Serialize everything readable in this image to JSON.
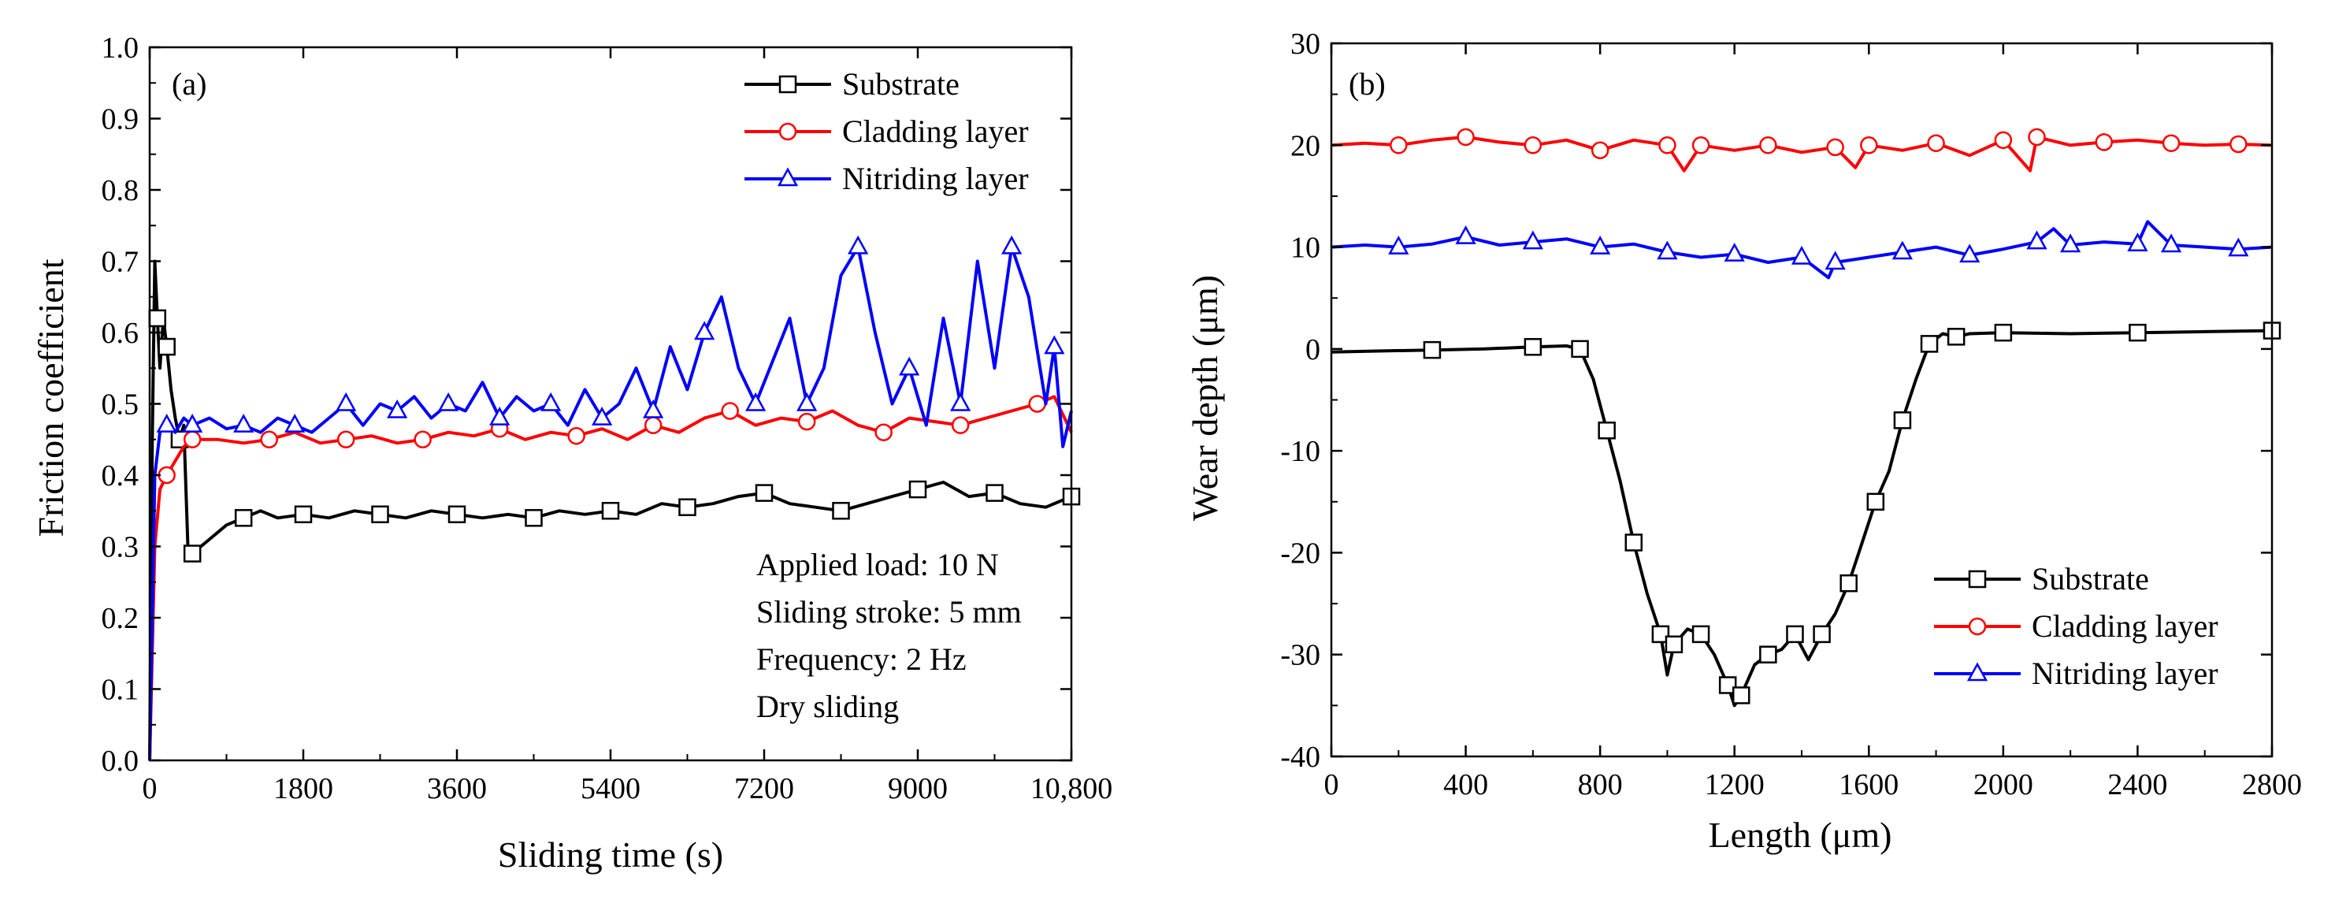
{
  "chart_data": [
    {
      "type": "line",
      "panel_label": "(a)",
      "xlabel": "Sliding time (s)",
      "ylabel": "Friction coefficient",
      "xlim": [
        0,
        10800
      ],
      "ylim": [
        0,
        1.0
      ],
      "xticks": [
        0,
        1800,
        3600,
        5400,
        7200,
        9000,
        10800
      ],
      "xtick_labels": [
        "0",
        "1800",
        "3600",
        "5400",
        "7200",
        "9000",
        "10,800"
      ],
      "yticks": [
        0,
        0.1,
        0.2,
        0.3,
        0.4,
        0.5,
        0.6,
        0.7,
        0.8,
        0.9,
        1.0
      ],
      "ytick_labels": [
        "0.0",
        "0.1",
        "0.2",
        "0.3",
        "0.4",
        "0.5",
        "0.6",
        "0.7",
        "0.8",
        "0.9",
        "1.0"
      ],
      "legend_position": "top-right",
      "annotations": [
        "Applied load: 10 N",
        "Sliding stroke: 5 mm",
        "Frequency: 2 Hz",
        "Dry sliding"
      ],
      "series": [
        {
          "name": "Substrate",
          "color": "#000000",
          "marker": "square",
          "x": [
            0,
            30,
            60,
            90,
            120,
            160,
            200,
            250,
            300,
            350,
            400,
            450,
            500,
            700,
            900,
            1100,
            1300,
            1500,
            1800,
            2100,
            2400,
            2700,
            3000,
            3300,
            3600,
            3900,
            4200,
            4500,
            4800,
            5100,
            5400,
            5700,
            6000,
            6300,
            6600,
            6900,
            7200,
            7500,
            7800,
            8100,
            8400,
            8700,
            9000,
            9300,
            9600,
            9900,
            10200,
            10500,
            10800
          ],
          "y": [
            0.0,
            0.45,
            0.7,
            0.62,
            0.55,
            0.62,
            0.58,
            0.52,
            0.48,
            0.45,
            0.47,
            0.29,
            0.29,
            0.31,
            0.33,
            0.34,
            0.35,
            0.34,
            0.345,
            0.34,
            0.35,
            0.345,
            0.34,
            0.35,
            0.345,
            0.34,
            0.345,
            0.34,
            0.35,
            0.345,
            0.35,
            0.345,
            0.36,
            0.355,
            0.36,
            0.37,
            0.375,
            0.36,
            0.355,
            0.35,
            0.36,
            0.37,
            0.38,
            0.39,
            0.37,
            0.375,
            0.36,
            0.355,
            0.37
          ]
        },
        {
          "name": "Cladding layer",
          "color": "#ff0000",
          "marker": "circle",
          "x": [
            0,
            60,
            120,
            200,
            300,
            400,
            500,
            800,
            1100,
            1400,
            1700,
            2000,
            2300,
            2600,
            2900,
            3200,
            3500,
            3800,
            4100,
            4400,
            4700,
            5000,
            5300,
            5600,
            5900,
            6200,
            6500,
            6800,
            7100,
            7400,
            7700,
            8000,
            8300,
            8600,
            8900,
            9200,
            9500,
            9800,
            10100,
            10400,
            10600,
            10800
          ],
          "y": [
            0.0,
            0.3,
            0.38,
            0.4,
            0.42,
            0.44,
            0.45,
            0.45,
            0.445,
            0.45,
            0.46,
            0.445,
            0.45,
            0.455,
            0.445,
            0.45,
            0.46,
            0.455,
            0.465,
            0.45,
            0.46,
            0.455,
            0.465,
            0.45,
            0.47,
            0.46,
            0.48,
            0.49,
            0.47,
            0.48,
            0.475,
            0.49,
            0.47,
            0.46,
            0.48,
            0.475,
            0.47,
            0.48,
            0.49,
            0.5,
            0.51,
            0.46
          ]
        },
        {
          "name": "Nitriding layer",
          "color": "#0000ff",
          "marker": "triangle",
          "x": [
            0,
            60,
            120,
            200,
            300,
            400,
            500,
            700,
            900,
            1100,
            1300,
            1500,
            1700,
            1900,
            2100,
            2300,
            2500,
            2700,
            2900,
            3100,
            3300,
            3500,
            3700,
            3900,
            4100,
            4300,
            4500,
            4700,
            4900,
            5100,
            5300,
            5500,
            5700,
            5900,
            6100,
            6300,
            6500,
            6700,
            6900,
            7100,
            7300,
            7500,
            7700,
            7900,
            8100,
            8300,
            8500,
            8700,
            8900,
            9100,
            9300,
            9500,
            9700,
            9900,
            10100,
            10300,
            10500,
            10600,
            10700,
            10800
          ],
          "y": [
            0.0,
            0.4,
            0.46,
            0.47,
            0.46,
            0.48,
            0.47,
            0.48,
            0.465,
            0.47,
            0.46,
            0.48,
            0.47,
            0.46,
            0.48,
            0.5,
            0.47,
            0.5,
            0.49,
            0.51,
            0.48,
            0.5,
            0.49,
            0.53,
            0.48,
            0.51,
            0.49,
            0.5,
            0.47,
            0.52,
            0.48,
            0.5,
            0.55,
            0.49,
            0.58,
            0.52,
            0.6,
            0.65,
            0.55,
            0.5,
            0.56,
            0.62,
            0.5,
            0.55,
            0.68,
            0.72,
            0.6,
            0.5,
            0.55,
            0.47,
            0.62,
            0.5,
            0.7,
            0.55,
            0.72,
            0.65,
            0.5,
            0.58,
            0.44,
            0.49
          ]
        }
      ]
    },
    {
      "type": "line",
      "panel_label": "(b)",
      "xlabel": "Length (μm)",
      "ylabel": "Wear depth (μm)",
      "xlim": [
        0,
        2800
      ],
      "ylim": [
        -40,
        30
      ],
      "xticks": [
        0,
        400,
        800,
        1200,
        1600,
        2000,
        2400,
        2800
      ],
      "xtick_labels": [
        "0",
        "400",
        "800",
        "1200",
        "1600",
        "2000",
        "2400",
        "2800"
      ],
      "yticks": [
        -40,
        -30,
        -20,
        -10,
        0,
        10,
        20,
        30
      ],
      "ytick_labels": [
        "-40",
        "-30",
        "-20",
        "-10",
        "0",
        "10",
        "20",
        "30"
      ],
      "legend_position": "bottom-right",
      "series": [
        {
          "name": "Substrate",
          "color": "#000000",
          "marker": "square",
          "x": [
            0,
            150,
            300,
            450,
            600,
            700,
            740,
            780,
            820,
            860,
            900,
            940,
            980,
            1000,
            1020,
            1060,
            1100,
            1140,
            1180,
            1200,
            1220,
            1260,
            1300,
            1340,
            1380,
            1420,
            1460,
            1500,
            1540,
            1580,
            1620,
            1660,
            1700,
            1740,
            1780,
            1820,
            1860,
            1900,
            2000,
            2200,
            2400,
            2600,
            2800
          ],
          "y": [
            -0.3,
            -0.2,
            -0.1,
            0.0,
            0.2,
            0.3,
            0.0,
            -3,
            -8,
            -13,
            -19,
            -24,
            -28,
            -32,
            -29,
            -27.5,
            -28,
            -30,
            -33,
            -35,
            -34,
            -31,
            -30,
            -29.5,
            -28,
            -30.5,
            -28,
            -26,
            -23,
            -19,
            -15,
            -12,
            -7,
            -3,
            0.5,
            1.5,
            1.2,
            1.5,
            1.6,
            1.5,
            1.6,
            1.7,
            1.8
          ]
        },
        {
          "name": "Cladding layer",
          "color": "#ff0000",
          "marker": "circle",
          "x": [
            0,
            100,
            200,
            300,
            400,
            500,
            600,
            700,
            800,
            900,
            1000,
            1050,
            1100,
            1200,
            1300,
            1400,
            1500,
            1560,
            1600,
            1700,
            1800,
            1900,
            2000,
            2080,
            2100,
            2200,
            2300,
            2400,
            2500,
            2600,
            2700,
            2800
          ],
          "y": [
            20,
            20.2,
            20,
            20.5,
            20.8,
            20.3,
            20,
            20.5,
            19.5,
            20.5,
            20,
            17.5,
            20,
            19.5,
            20,
            19.3,
            19.8,
            17.8,
            20,
            19.5,
            20.2,
            19,
            20.5,
            17.5,
            20.8,
            20,
            20.3,
            20.5,
            20.2,
            20,
            20.1,
            20
          ]
        },
        {
          "name": "Nitriding layer",
          "color": "#0000ff",
          "marker": "triangle",
          "x": [
            0,
            100,
            200,
            300,
            400,
            500,
            600,
            700,
            800,
            900,
            1000,
            1100,
            1200,
            1300,
            1400,
            1480,
            1500,
            1600,
            1700,
            1800,
            1900,
            2000,
            2100,
            2150,
            2200,
            2300,
            2400,
            2430,
            2500,
            2600,
            2700,
            2800
          ],
          "y": [
            10,
            10.2,
            10,
            10.3,
            11,
            10.2,
            10.5,
            10.8,
            10,
            10.3,
            9.5,
            9,
            9.3,
            8.5,
            9,
            7,
            8.5,
            9,
            9.5,
            10,
            9.2,
            9.8,
            10.5,
            11.8,
            10.2,
            10.5,
            10.3,
            12.5,
            10.2,
            10,
            9.8,
            10
          ]
        }
      ]
    }
  ]
}
